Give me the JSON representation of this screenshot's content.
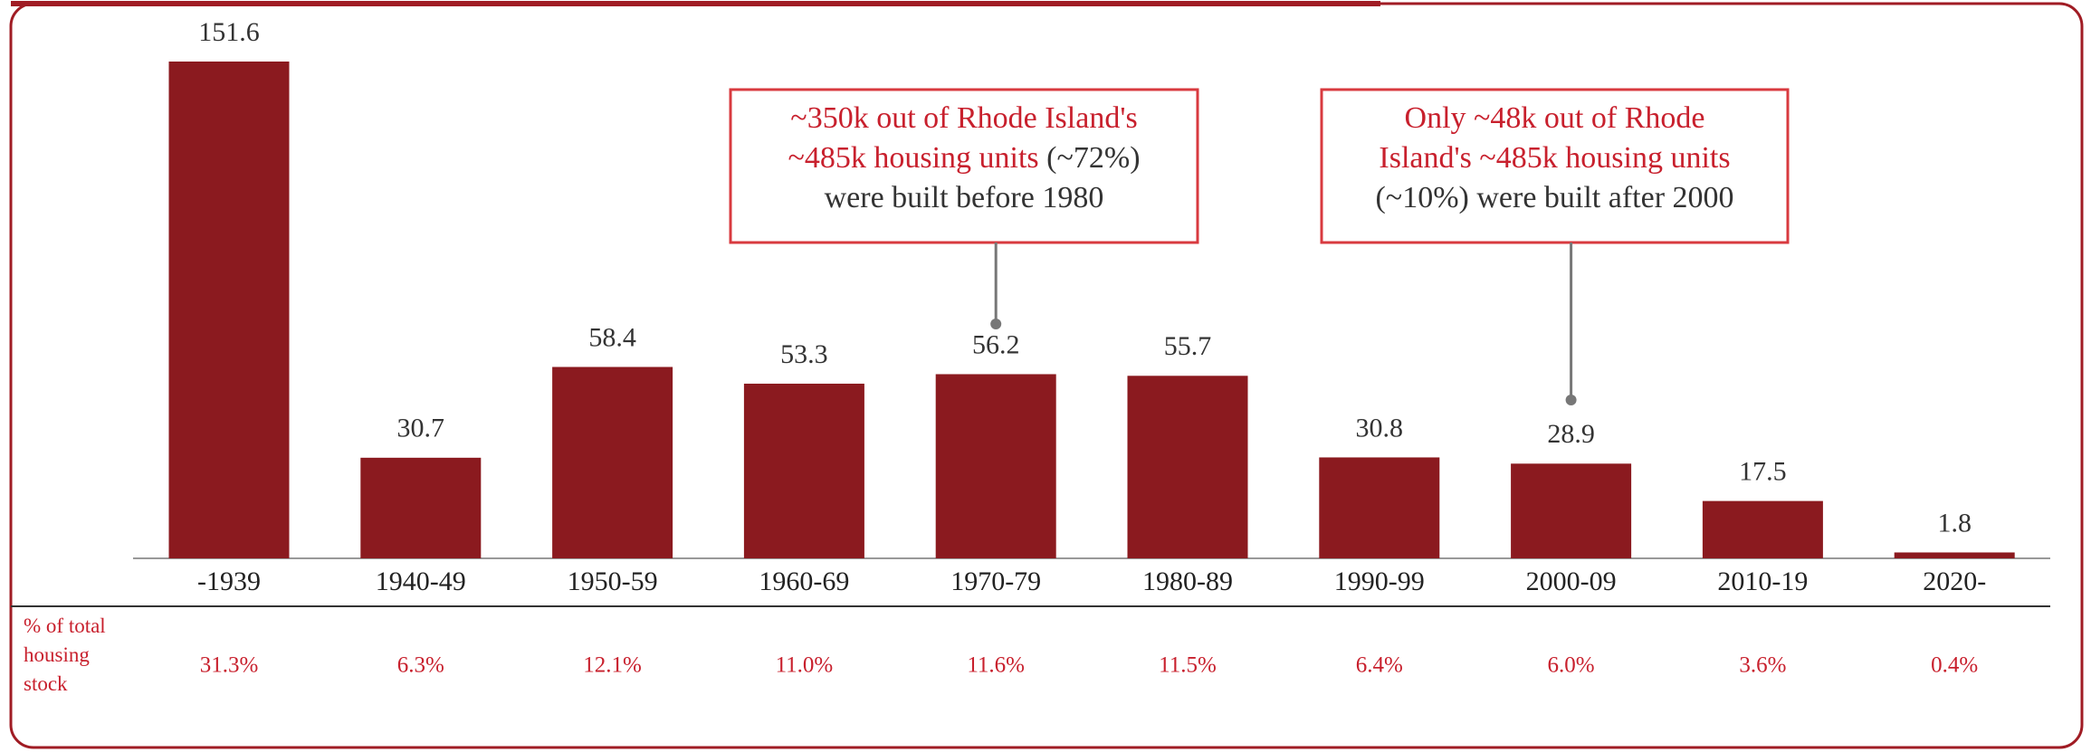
{
  "chart_data": {
    "type": "bar",
    "categories": [
      "-1939",
      "1940-49",
      "1950-59",
      "1960-69",
      "1970-79",
      "1980-89",
      "1990-99",
      "2000-09",
      "2010-19",
      "2020-"
    ],
    "values": [
      151.6,
      30.7,
      58.4,
      53.3,
      56.2,
      55.7,
      30.8,
      28.9,
      17.5,
      1.8
    ],
    "color": "#8b1a1f",
    "row_label": "% of total housing stock",
    "share_labels": [
      "31.3%",
      "6.3%",
      "12.1%",
      "11.0%",
      "11.6%",
      "11.5%",
      "6.4%",
      "6.0%",
      "3.6%",
      "0.4%"
    ],
    "annotations": [
      {
        "category_index": 4,
        "lines": [
          [
            {
              "text": "~350k out of Rhode Island's",
              "color": "#c8202d"
            }
          ],
          [
            {
              "text": "~485k housing units",
              "color": "#c8202d"
            },
            {
              "text": " (~72%)",
              "color": "#333333"
            }
          ],
          [
            {
              "text": "were built before 1980",
              "color": "#333333"
            }
          ]
        ]
      },
      {
        "category_index": 7,
        "lines": [
          [
            {
              "text": "Only ~48k out of Rhode",
              "color": "#c8202d"
            }
          ],
          [
            {
              "text": "Island's ~485k housing units",
              "color": "#c8202d"
            }
          ],
          [
            {
              "text": "(~10%) were built after 2000",
              "color": "#333333"
            }
          ]
        ]
      }
    ]
  }
}
